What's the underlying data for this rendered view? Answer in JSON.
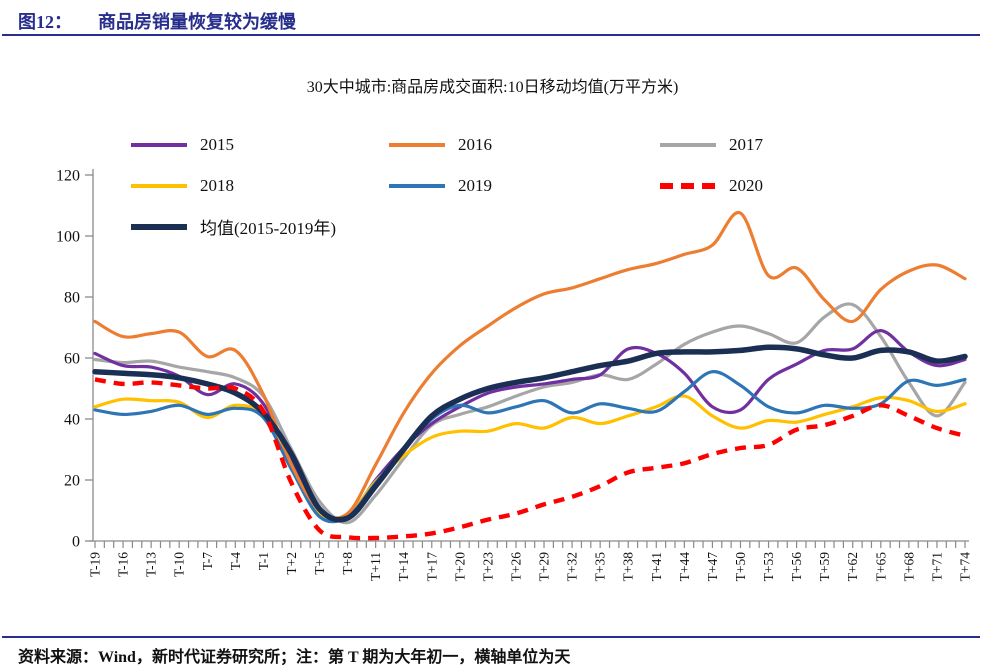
{
  "figure": {
    "label": "图12：",
    "title": "商品房销量恢复较为缓慢"
  },
  "footer": {
    "text": "资料来源：Wind，新时代证券研究所；注：第 T 期为大年初一，横轴单位为天"
  },
  "colors": {
    "header_accent": "#272E8D",
    "axis": "#8a8a8a",
    "text": "#111111"
  },
  "chart_data": {
    "type": "line",
    "title": "30大中城市:商品房成交面积:10日移动均值(万平方米)",
    "xlabel": "",
    "ylabel": "",
    "ylim": [
      0,
      120
    ],
    "y_ticks": [
      0,
      20,
      40,
      60,
      80,
      100,
      120
    ],
    "grid": false,
    "legend_position": "top-left",
    "x_minor_tick_every_days": 1,
    "x_label_every_days": 3,
    "x_labels": [
      "T-19",
      "T-16",
      "T-13",
      "T-10",
      "T-7",
      "T-4",
      "T-1",
      "T+2",
      "T+5",
      "T+8",
      "T+11",
      "T+14",
      "T+17",
      "T+20",
      "T+23",
      "T+26",
      "T+29",
      "T+32",
      "T+35",
      "T+38",
      "T+41",
      "T+44",
      "T+47",
      "T+50",
      "T+53",
      "T+56",
      "T+59",
      "T+62",
      "T+65",
      "T+68",
      "T+71",
      "T+74"
    ],
    "series": [
      {
        "name": "2015",
        "color": "#7030A0",
        "style": "solid",
        "width": 3.2,
        "values": [
          61.5,
          57.5,
          57,
          54,
          48,
          51.5,
          45,
          26,
          9,
          8,
          20,
          30.5,
          38.5,
          44,
          48.5,
          50.5,
          51.5,
          53,
          54.5,
          63,
          61.5,
          55,
          44,
          43,
          53,
          58,
          62.5,
          63,
          69,
          62,
          57.5,
          59.5
        ]
      },
      {
        "name": "2016",
        "color": "#ED7D31",
        "style": "solid",
        "width": 3.2,
        "values": [
          72,
          67,
          68,
          68.5,
          60.5,
          62.5,
          48,
          25,
          10,
          9,
          25,
          42,
          55,
          64,
          70.5,
          76.5,
          81,
          83,
          86,
          89,
          91,
          94,
          97,
          107.5,
          87,
          89.5,
          79,
          72,
          82.5,
          88.5,
          90.5,
          86
        ]
      },
      {
        "name": "2017",
        "color": "#A6A6A6",
        "style": "solid",
        "width": 3.2,
        "values": [
          59.5,
          58.5,
          59,
          57,
          55.5,
          53.5,
          47.5,
          30,
          13,
          6,
          15,
          27,
          38,
          41.5,
          44,
          47.5,
          50.5,
          52,
          54.5,
          53,
          58,
          64.5,
          68.5,
          70.5,
          68,
          65,
          73.5,
          77.5,
          67,
          52,
          41,
          52
        ]
      },
      {
        "name": "2018",
        "color": "#FFC000",
        "style": "solid",
        "width": 3.2,
        "values": [
          44,
          46.5,
          46,
          45.5,
          40.5,
          44.5,
          41,
          24,
          8.5,
          8.5,
          19.5,
          28,
          34,
          36,
          36,
          38.5,
          37,
          40.5,
          38.5,
          41,
          44,
          47.5,
          41,
          37,
          39.5,
          39,
          41.5,
          44,
          47,
          46,
          42.5,
          45
        ]
      },
      {
        "name": "2019",
        "color": "#2E75B6",
        "style": "solid",
        "width": 3.2,
        "values": [
          43,
          41.5,
          42.5,
          44.5,
          41.5,
          43.5,
          40.5,
          23.5,
          8,
          8,
          19,
          30,
          40,
          44.5,
          42,
          44,
          46,
          42,
          45,
          43.5,
          42.5,
          49,
          55.5,
          51,
          44,
          42,
          44.5,
          43.5,
          45,
          52.5,
          51,
          53
        ]
      },
      {
        "name": "2020",
        "color": "#FF0000",
        "style": "dashed",
        "width": 4.4,
        "values": [
          53,
          51.5,
          52,
          51,
          50,
          50,
          42.5,
          19,
          3.5,
          1.2,
          1,
          1.5,
          2.5,
          4.5,
          7,
          9,
          12,
          14.5,
          18,
          22.5,
          24,
          25.5,
          28.5,
          30.5,
          31.5,
          36.5,
          38,
          41,
          44.5,
          41,
          37,
          34.5
        ]
      },
      {
        "name": "均值(2015-2019年)",
        "color": "#1B2F55",
        "style": "solid",
        "width": 5.5,
        "values": [
          55.5,
          55,
          54.5,
          53.5,
          51.5,
          48.5,
          42,
          28.5,
          10.5,
          7.5,
          18,
          30,
          41,
          46.5,
          50,
          52,
          53.5,
          55.5,
          57.5,
          59,
          61.5,
          62,
          62,
          62.5,
          63.5,
          63,
          61,
          60,
          62.5,
          62,
          59,
          60.5
        ]
      }
    ]
  }
}
